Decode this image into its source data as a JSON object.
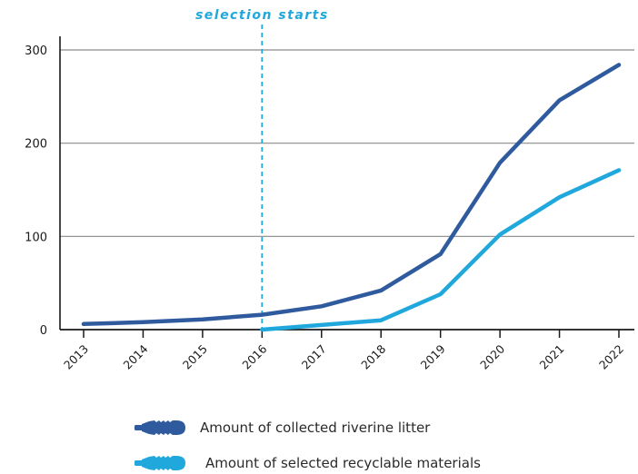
{
  "chart_data": {
    "type": "line",
    "x": [
      "2013",
      "2014",
      "2015",
      "2016",
      "2017",
      "2018",
      "2019",
      "2020",
      "2021",
      "2022"
    ],
    "series": [
      {
        "name": "Amount of collected riverine litter",
        "color": "#2f5b9e",
        "values": [
          6,
          8,
          11,
          16,
          25,
          42,
          81,
          179,
          246,
          284
        ]
      },
      {
        "name": "Amount of selected recyclable materials",
        "color": "#20a8dc",
        "x_start": "2016",
        "values": [
          null,
          null,
          null,
          0,
          5,
          10,
          38,
          102,
          142,
          171
        ]
      }
    ],
    "y_ticks": [
      "0",
      "100",
      "200",
      "300"
    ],
    "ylim": [
      0,
      300
    ],
    "grid": "horizontal",
    "annotation": {
      "text": "selection starts",
      "x": "2016",
      "color": "#20a8dc"
    },
    "legend_position": "bottom",
    "legend_icon": "bottle-icon"
  }
}
